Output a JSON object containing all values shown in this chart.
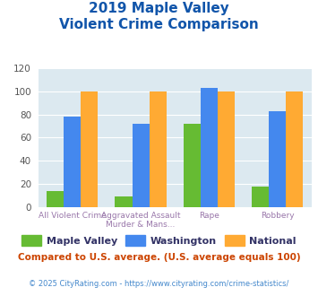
{
  "title_line1": "2019 Maple Valley",
  "title_line2": "Violent Crime Comparison",
  "maple_valley": [
    14,
    9,
    72,
    18
  ],
  "washington": [
    78,
    72,
    103,
    83
  ],
  "national": [
    100,
    100,
    100,
    100
  ],
  "ylim": [
    0,
    120
  ],
  "yticks": [
    0,
    20,
    40,
    60,
    80,
    100,
    120
  ],
  "color_mv": "#66bb33",
  "color_wa": "#4488ee",
  "color_na": "#ffaa33",
  "title_color": "#1155aa",
  "xlabel_color": "#9977aa",
  "footer_text": "Compared to U.S. average. (U.S. average equals 100)",
  "footer_color": "#cc4400",
  "credit_text": "© 2025 CityRating.com - https://www.cityrating.com/crime-statistics/",
  "credit_color": "#4488cc",
  "bg_color": "#dce9f0",
  "legend_labels": [
    "Maple Valley",
    "Washington",
    "National"
  ],
  "legend_text_color": "#333366",
  "bar_width": 0.25
}
